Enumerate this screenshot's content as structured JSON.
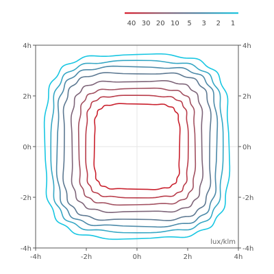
{
  "chart_data": {
    "type": "line",
    "subtype": "isolux-contour",
    "unit_label": "lux/klm",
    "xlim": [
      -4,
      4
    ],
    "ylim": [
      -4,
      4
    ],
    "grid": true,
    "legend_position": "top-right",
    "x_ticks": [
      {
        "value": -4,
        "label": "-4h"
      },
      {
        "value": -2,
        "label": "-2h"
      },
      {
        "value": 0,
        "label": "0h"
      },
      {
        "value": 2,
        "label": "2h"
      },
      {
        "value": 4,
        "label": "4h"
      }
    ],
    "y_ticks": [
      {
        "value": 4,
        "label": "4h"
      },
      {
        "value": 2,
        "label": "2h"
      },
      {
        "value": 0,
        "label": "0h"
      },
      {
        "value": -2,
        "label": "-2h"
      },
      {
        "value": -4,
        "label": "-4h"
      }
    ],
    "gradient": {
      "colors": [
        "#d81c2c",
        "#8e5f72",
        "#4f88a8",
        "#18c6e0"
      ]
    },
    "series": [
      {
        "name": "40",
        "half_width": 1.68,
        "corner_exponent": 5.2,
        "color": "#c91f2c"
      },
      {
        "name": "30",
        "half_width": 2.0,
        "corner_exponent": 5.0,
        "color": "#b83a48"
      },
      {
        "name": "20",
        "half_width": 2.28,
        "corner_exponent": 4.8,
        "color": "#a14f5f"
      },
      {
        "name": "10",
        "half_width": 2.58,
        "corner_exponent": 4.6,
        "color": "#7d6478"
      },
      {
        "name": "5",
        "half_width": 2.9,
        "corner_exponent": 4.4,
        "color": "#5c7891"
      },
      {
        "name": "3",
        "half_width": 3.14,
        "corner_exponent": 4.2,
        "color": "#4b89a8"
      },
      {
        "name": "2",
        "half_width": 3.36,
        "corner_exponent": 4.0,
        "color": "#34a6c4"
      },
      {
        "name": "1",
        "half_width": 3.62,
        "corner_exponent": 3.8,
        "color": "#17c6e2"
      }
    ]
  }
}
